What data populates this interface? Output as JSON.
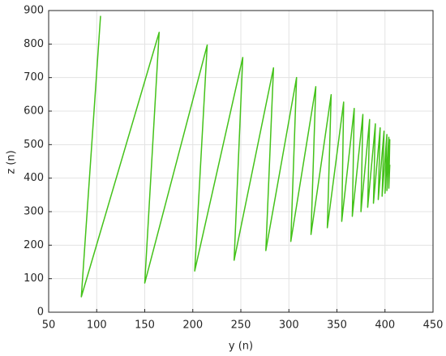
{
  "chart_data": {
    "type": "line",
    "x_label": "y (n)",
    "y_label": "z (n)",
    "x": [
      104,
      84,
      165,
      150,
      215,
      202,
      252,
      243,
      284,
      276,
      308,
      302,
      328,
      323,
      344,
      340,
      357,
      355,
      368,
      366,
      377,
      375,
      384,
      382,
      390,
      388,
      395,
      393,
      399,
      397,
      402,
      400,
      404,
      402,
      405,
      404,
      405
    ],
    "values": [
      884,
      46,
      835,
      87,
      797,
      123,
      760,
      155,
      729,
      184,
      700,
      211,
      673,
      232,
      649,
      252,
      627,
      271,
      608,
      286,
      590,
      300,
      575,
      313,
      562,
      325,
      550,
      336,
      540,
      346,
      530,
      355,
      522,
      363,
      515,
      370,
      440
    ],
    "color": "#44c21a",
    "xlim": [
      50,
      450
    ],
    "xticks": [
      50,
      100,
      150,
      200,
      250,
      300,
      350,
      400,
      450
    ],
    "ylim": [
      0,
      900
    ],
    "yticks": [
      0,
      100,
      200,
      300,
      400,
      500,
      600,
      700,
      800,
      900
    ],
    "grid": true
  }
}
